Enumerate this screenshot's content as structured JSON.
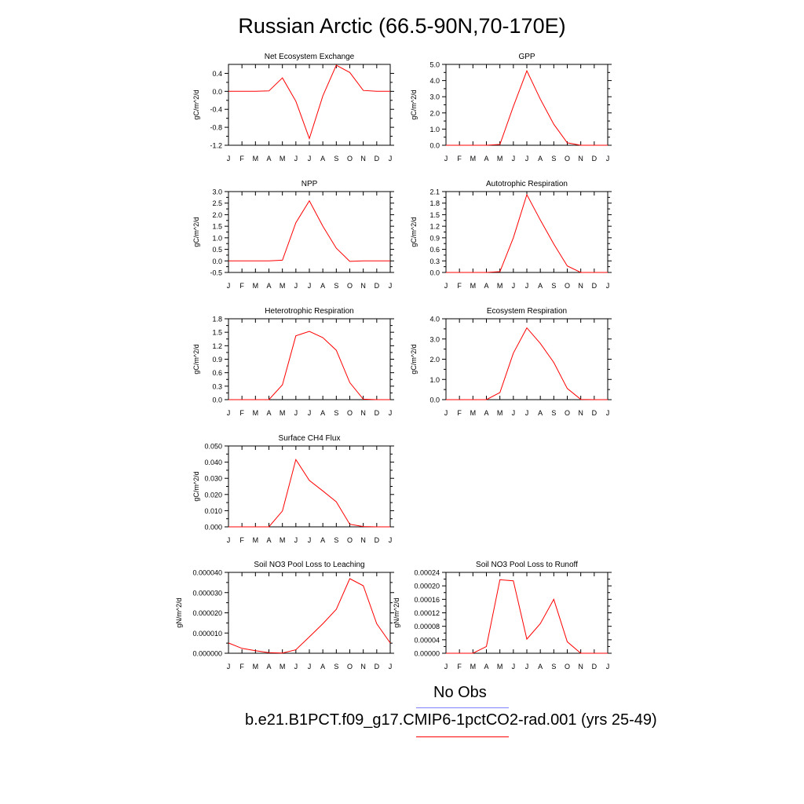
{
  "title": "Russian Arctic (66.5-90N,70-170E)",
  "legend": {
    "obs_label": "No Obs",
    "obs_color": "#8080ff",
    "model_label": "b.e21.B1PCT.f09_g17.CMIP6-1pctCO2-rad.001 (yrs 25-49)",
    "model_color": "#ff0000"
  },
  "chart_data": [
    {
      "type": "line",
      "title": "Net Ecosystem Exchange",
      "ylabel": "gC/m^2/d",
      "x": [
        "J",
        "F",
        "M",
        "A",
        "M",
        "J",
        "J",
        "A",
        "S",
        "O",
        "N",
        "D",
        "J"
      ],
      "ylim": [
        -1.2,
        0.6
      ],
      "yticks": [
        "0.4",
        "0.0",
        "-0.4",
        "-0.8",
        "-1.2"
      ],
      "series": [
        {
          "values": [
            0.0,
            0.0,
            0.0,
            0.01,
            0.3,
            -0.22,
            -1.05,
            -0.1,
            0.58,
            0.42,
            0.02,
            0.0,
            0.0
          ]
        }
      ]
    },
    {
      "type": "line",
      "title": "GPP",
      "ylabel": "gC/m^2/d",
      "x": [
        "J",
        "F",
        "M",
        "A",
        "M",
        "J",
        "J",
        "A",
        "S",
        "O",
        "N",
        "D",
        "J"
      ],
      "ylim": [
        0.0,
        5.0
      ],
      "yticks": [
        "5.0",
        "4.0",
        "3.0",
        "2.0",
        "1.0",
        "0.0"
      ],
      "series": [
        {
          "values": [
            0.0,
            0.0,
            0.0,
            0.0,
            0.05,
            2.4,
            4.6,
            2.85,
            1.3,
            0.15,
            0.0,
            0.0,
            0.0
          ]
        }
      ]
    },
    {
      "type": "line",
      "title": "NPP",
      "ylabel": "gC/m^2/d",
      "x": [
        "J",
        "F",
        "M",
        "A",
        "M",
        "J",
        "J",
        "A",
        "S",
        "O",
        "N",
        "D",
        "J"
      ],
      "ylim": [
        -0.5,
        3.0
      ],
      "yticks": [
        "3.0",
        "2.5",
        "2.0",
        "1.5",
        "1.0",
        "0.5",
        "0.0",
        "-0.5"
      ],
      "series": [
        {
          "values": [
            0.0,
            0.0,
            0.0,
            0.0,
            0.03,
            1.65,
            2.6,
            1.5,
            0.55,
            -0.02,
            0.0,
            0.0,
            0.0
          ]
        }
      ]
    },
    {
      "type": "line",
      "title": "Autotrophic Respiration",
      "ylabel": "gC/m^2/d",
      "x": [
        "J",
        "F",
        "M",
        "A",
        "M",
        "J",
        "J",
        "A",
        "S",
        "O",
        "N",
        "D",
        "J"
      ],
      "ylim": [
        0.0,
        2.1
      ],
      "yticks": [
        "2.1",
        "1.8",
        "1.5",
        "1.2",
        "0.9",
        "0.6",
        "0.3",
        "0.0"
      ],
      "series": [
        {
          "values": [
            0.0,
            0.0,
            0.0,
            0.0,
            0.02,
            0.9,
            2.02,
            1.36,
            0.74,
            0.17,
            0.0,
            0.0,
            0.0
          ]
        }
      ]
    },
    {
      "type": "line",
      "title": "Heterotrophic Respiration",
      "ylabel": "gC/m^2/d",
      "x": [
        "J",
        "F",
        "M",
        "A",
        "M",
        "J",
        "J",
        "A",
        "S",
        "O",
        "N",
        "D",
        "J"
      ],
      "ylim": [
        0.0,
        1.8
      ],
      "yticks": [
        "1.8",
        "1.5",
        "1.2",
        "0.9",
        "0.6",
        "0.3",
        "0.0"
      ],
      "series": [
        {
          "values": [
            0.0,
            0.0,
            0.0,
            0.0,
            0.33,
            1.42,
            1.52,
            1.38,
            1.1,
            0.38,
            0.01,
            0.0,
            0.0
          ]
        }
      ]
    },
    {
      "type": "line",
      "title": "Ecosystem Respiration",
      "ylabel": "gC/m^2/d",
      "x": [
        "J",
        "F",
        "M",
        "A",
        "M",
        "J",
        "J",
        "A",
        "S",
        "O",
        "N",
        "D",
        "J"
      ],
      "ylim": [
        0.0,
        4.0
      ],
      "yticks": [
        "4.0",
        "3.0",
        "2.0",
        "1.0",
        "0.0"
      ],
      "series": [
        {
          "values": [
            0.0,
            0.0,
            0.0,
            0.0,
            0.35,
            2.3,
            3.55,
            2.78,
            1.84,
            0.55,
            0.01,
            0.0,
            0.0
          ]
        }
      ]
    },
    {
      "type": "line",
      "title": "Surface CH4 Flux",
      "ylabel": "gC/m^2/d",
      "x": [
        "J",
        "F",
        "M",
        "A",
        "M",
        "J",
        "J",
        "A",
        "S",
        "O",
        "N",
        "D",
        "J"
      ],
      "ylim": [
        0.0,
        0.05
      ],
      "yticks": [
        "0.050",
        "0.040",
        "0.030",
        "0.020",
        "0.010",
        "0.000"
      ],
      "series": [
        {
          "values": [
            0.0,
            0.0,
            0.0,
            0.0,
            0.0098,
            0.0416,
            0.0287,
            0.0222,
            0.0155,
            0.0016,
            0.0002,
            0.0,
            0.0
          ]
        }
      ]
    },
    {
      "type": "line",
      "title": "Soil NO3 Pool Loss to Leaching",
      "ylabel": "gN/m^2/d",
      "x": [
        "J",
        "F",
        "M",
        "A",
        "M",
        "J",
        "J",
        "A",
        "S",
        "O",
        "N",
        "D",
        "J"
      ],
      "ylim": [
        0.0,
        4e-05
      ],
      "yticks": [
        "0.000040",
        "0.000030",
        "0.000020",
        "0.000010",
        "0.000000"
      ],
      "series": [
        {
          "values": [
            5.1e-06,
            2.4e-06,
            1.3e-06,
            3e-07,
            1e-07,
            1.7e-06,
            8.1e-06,
            1.46e-05,
            2.17e-05,
            3.69e-05,
            3.34e-05,
            1.46e-05,
            5.1e-06
          ]
        }
      ]
    },
    {
      "type": "line",
      "title": "Soil NO3 Pool Loss to Runoff",
      "ylabel": "gN/m^2/d",
      "x": [
        "J",
        "F",
        "M",
        "A",
        "M",
        "J",
        "J",
        "A",
        "S",
        "O",
        "N",
        "D",
        "J"
      ],
      "ylim": [
        0.0,
        0.00024
      ],
      "yticks": [
        "0.00024",
        "0.00020",
        "0.00016",
        "0.00012",
        "0.00008",
        "0.00004",
        "0.00000"
      ],
      "series": [
        {
          "values": [
            0.0,
            0.0,
            0.0,
            2e-05,
            0.000218,
            0.000215,
            4.2e-05,
            8.8e-05,
            0.00016,
            3.4e-05,
            0.0,
            0.0,
            0.0
          ]
        }
      ]
    }
  ]
}
